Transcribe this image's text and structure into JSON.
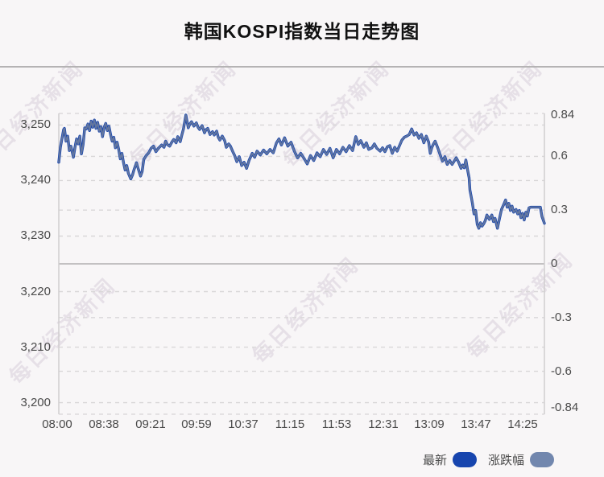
{
  "title": "韩国KOSPI指数当日走势图",
  "watermark": {
    "text": "每日经济新闻"
  },
  "legend": {
    "items": [
      {
        "label": "最新",
        "color": "#1745ae"
      },
      {
        "label": "涨跌幅",
        "color": "#7287ae"
      }
    ]
  },
  "chart_data": {
    "type": "line",
    "title": "韩国KOSPI指数当日走势图",
    "prev_close": 3225,
    "grid": "dashed horizontal at every left and right axis tick, solid line at 0%",
    "legend_position": "bottom-right",
    "y_axis_left": {
      "labels": [
        "3,250",
        "3,240",
        "3,230",
        "3,220",
        "3,210",
        "3,200"
      ],
      "values": [
        3250,
        3240,
        3230,
        3220,
        3210,
        3200
      ]
    },
    "y_axis_right": {
      "labels": [
        "0.84",
        "0.6",
        "0.3",
        "0",
        "-0.3",
        "-0.6",
        "-0.84"
      ],
      "values": [
        0.84,
        0.6,
        0.3,
        0,
        -0.3,
        -0.6,
        -0.84
      ],
      "unit": "%",
      "range": [
        -0.84,
        0.84
      ]
    },
    "x_axis": {
      "tick_labels": [
        "08:00",
        "08:38",
        "09:21",
        "09:59",
        "10:37",
        "11:15",
        "11:53",
        "12:31",
        "13:09",
        "13:47",
        "14:25"
      ],
      "sample_span": 600
    },
    "series": [
      {
        "name": "最新",
        "color": "#1745ae",
        "points": [
          [
            0,
            3243.3
          ],
          [
            2,
            3246.0
          ],
          [
            4,
            3247.6
          ],
          [
            6,
            3249.2
          ],
          [
            7,
            3249.4
          ],
          [
            9,
            3247.1
          ],
          [
            11,
            3248.0
          ],
          [
            13,
            3245.4
          ],
          [
            15,
            3246.2
          ],
          [
            18,
            3244.2
          ],
          [
            20,
            3246.0
          ],
          [
            22,
            3247.5
          ],
          [
            24,
            3246.6
          ],
          [
            26,
            3248.0
          ],
          [
            28,
            3244.8
          ],
          [
            30,
            3246.5
          ],
          [
            32,
            3249.5
          ],
          [
            34,
            3249.3
          ],
          [
            36,
            3250.2
          ],
          [
            38,
            3249.0
          ],
          [
            40,
            3250.7
          ],
          [
            42,
            3249.6
          ],
          [
            44,
            3250.9
          ],
          [
            46,
            3249.4
          ],
          [
            48,
            3250.5
          ],
          [
            50,
            3248.9
          ],
          [
            52,
            3249.7
          ],
          [
            54,
            3247.9
          ],
          [
            56,
            3249.6
          ],
          [
            58,
            3250.3
          ],
          [
            60,
            3249.0
          ],
          [
            62,
            3249.8
          ],
          [
            64,
            3248.3
          ],
          [
            66,
            3247.1
          ],
          [
            68,
            3247.8
          ],
          [
            70,
            3245.9
          ],
          [
            72,
            3246.9
          ],
          [
            74,
            3245.6
          ],
          [
            76,
            3243.9
          ],
          [
            78,
            3244.9
          ],
          [
            80,
            3243.2
          ],
          [
            82,
            3241.9
          ],
          [
            84,
            3242.7
          ],
          [
            86,
            3241.3
          ],
          [
            89,
            3240.3
          ],
          [
            91,
            3241.0
          ],
          [
            93,
            3242.0
          ],
          [
            96,
            3243.2
          ],
          [
            98,
            3242.2
          ],
          [
            101,
            3240.8
          ],
          [
            103,
            3241.6
          ],
          [
            105,
            3243.8
          ],
          [
            108,
            3244.5
          ],
          [
            111,
            3245.0
          ],
          [
            114,
            3245.8
          ],
          [
            117,
            3246.2
          ],
          [
            120,
            3245.2
          ],
          [
            123,
            3245.8
          ],
          [
            127,
            3246.4
          ],
          [
            130,
            3246.0
          ],
          [
            132,
            3247.1
          ],
          [
            134,
            3246.5
          ],
          [
            137,
            3246.2
          ],
          [
            140,
            3247.0
          ],
          [
            142,
            3247.4
          ],
          [
            145,
            3246.8
          ],
          [
            147,
            3247.9
          ],
          [
            150,
            3247.0
          ],
          [
            152,
            3248.2
          ],
          [
            154,
            3249.3
          ],
          [
            157,
            3251.8
          ],
          [
            160,
            3249.5
          ],
          [
            162,
            3250.2
          ],
          [
            164,
            3250.6
          ],
          [
            167,
            3249.8
          ],
          [
            170,
            3250.4
          ],
          [
            172,
            3249.6
          ],
          [
            174,
            3249.2
          ],
          [
            177,
            3249.9
          ],
          [
            180,
            3248.6
          ],
          [
            182,
            3249.2
          ],
          [
            184,
            3249.4
          ],
          [
            187,
            3248.3
          ],
          [
            190,
            3248.8
          ],
          [
            192,
            3248.2
          ],
          [
            195,
            3248.9
          ],
          [
            197,
            3247.8
          ],
          [
            199,
            3247.3
          ],
          [
            202,
            3248.0
          ],
          [
            205,
            3247.2
          ],
          [
            207,
            3246.0
          ],
          [
            210,
            3246.6
          ],
          [
            212,
            3246.2
          ],
          [
            215,
            3245.2
          ],
          [
            217,
            3244.6
          ],
          [
            220,
            3243.4
          ],
          [
            223,
            3244.3
          ],
          [
            226,
            3242.7
          ],
          [
            229,
            3243.3
          ],
          [
            232,
            3242.2
          ],
          [
            235,
            3243.6
          ],
          [
            239,
            3244.9
          ],
          [
            242,
            3244.2
          ],
          [
            245,
            3245.3
          ],
          [
            249,
            3244.6
          ],
          [
            253,
            3245.5
          ],
          [
            257,
            3244.8
          ],
          [
            261,
            3245.6
          ],
          [
            265,
            3245.0
          ],
          [
            269,
            3246.8
          ],
          [
            272,
            3247.5
          ],
          [
            275,
            3246.4
          ],
          [
            279,
            3247.7
          ],
          [
            283,
            3246.2
          ],
          [
            287,
            3246.9
          ],
          [
            291,
            3245.3
          ],
          [
            295,
            3244.1
          ],
          [
            299,
            3244.9
          ],
          [
            303,
            3244.0
          ],
          [
            307,
            3243.0
          ],
          [
            311,
            3244.5
          ],
          [
            315,
            3243.6
          ],
          [
            319,
            3245.0
          ],
          [
            323,
            3244.3
          ],
          [
            327,
            3245.6
          ],
          [
            331,
            3244.7
          ],
          [
            335,
            3245.8
          ],
          [
            339,
            3244.1
          ],
          [
            343,
            3245.6
          ],
          [
            347,
            3244.8
          ],
          [
            351,
            3246.0
          ],
          [
            355,
            3245.2
          ],
          [
            359,
            3246.3
          ],
          [
            363,
            3245.4
          ],
          [
            367,
            3247.9
          ],
          [
            370,
            3246.5
          ],
          [
            373,
            3247.2
          ],
          [
            377,
            3246.0
          ],
          [
            380,
            3246.8
          ],
          [
            383,
            3245.6
          ],
          [
            387,
            3245.9
          ],
          [
            390,
            3246.6
          ],
          [
            393,
            3245.8
          ],
          [
            397,
            3245.3
          ],
          [
            400,
            3245.9
          ],
          [
            403,
            3245.2
          ],
          [
            406,
            3246.1
          ],
          [
            409,
            3246.3
          ],
          [
            412,
            3244.9
          ],
          [
            415,
            3246.0
          ],
          [
            418,
            3245.3
          ],
          [
            421,
            3246.3
          ],
          [
            424,
            3247.3
          ],
          [
            427,
            3247.8
          ],
          [
            430,
            3248.0
          ],
          [
            433,
            3248.3
          ],
          [
            436,
            3249.3
          ],
          [
            439,
            3248.2
          ],
          [
            442,
            3248.6
          ],
          [
            445,
            3247.6
          ],
          [
            448,
            3248.3
          ],
          [
            451,
            3246.8
          ],
          [
            454,
            3248.0
          ],
          [
            457,
            3246.9
          ],
          [
            459,
            3244.9
          ],
          [
            461,
            3246.0
          ],
          [
            463,
            3246.6
          ],
          [
            465,
            3247.1
          ],
          [
            468,
            3246.0
          ],
          [
            471,
            3244.7
          ],
          [
            474,
            3243.5
          ],
          [
            477,
            3244.3
          ],
          [
            480,
            3242.9
          ],
          [
            483,
            3243.6
          ],
          [
            486,
            3242.9
          ],
          [
            489,
            3243.6
          ],
          [
            491,
            3244.1
          ],
          [
            494,
            3243.3
          ],
          [
            497,
            3242.2
          ],
          [
            499,
            3242.8
          ],
          [
            501,
            3242.3
          ],
          [
            503,
            3243.7
          ],
          [
            505,
            3242.0
          ],
          [
            507,
            3240.5
          ],
          [
            508,
            3238.3
          ],
          [
            510,
            3236.8
          ],
          [
            511,
            3235.9
          ],
          [
            513,
            3234.0
          ],
          [
            515,
            3234.6
          ],
          [
            517,
            3232.1
          ],
          [
            519,
            3231.4
          ],
          [
            521,
            3232.4
          ],
          [
            523,
            3231.8
          ],
          [
            525,
            3232.2
          ],
          [
            527,
            3232.8
          ],
          [
            529,
            3233.8
          ],
          [
            532,
            3233.0
          ],
          [
            535,
            3233.8
          ],
          [
            537,
            3232.6
          ],
          [
            539,
            3233.2
          ],
          [
            542,
            3231.4
          ],
          [
            544,
            3232.8
          ],
          [
            547,
            3234.8
          ],
          [
            550,
            3235.8
          ],
          [
            552,
            3236.5
          ],
          [
            554,
            3235.2
          ],
          [
            556,
            3235.9
          ],
          [
            558,
            3234.6
          ],
          [
            560,
            3235.4
          ],
          [
            562,
            3234.3
          ],
          [
            565,
            3234.8
          ],
          [
            567,
            3234.0
          ],
          [
            569,
            3234.6
          ],
          [
            571,
            3233.3
          ],
          [
            573,
            3234.1
          ],
          [
            575,
            3232.9
          ],
          [
            577,
            3234.3
          ],
          [
            579,
            3233.6
          ],
          [
            581,
            3235.1
          ],
          [
            583,
            3235.2
          ],
          [
            595,
            3235.2
          ],
          [
            597,
            3233.5
          ],
          [
            600,
            3232.3
          ]
        ]
      },
      {
        "name": "涨跌幅",
        "color": "#7287ae",
        "derived_from": "最新",
        "formula": "(value / 3225 - 1) * 100"
      }
    ]
  }
}
